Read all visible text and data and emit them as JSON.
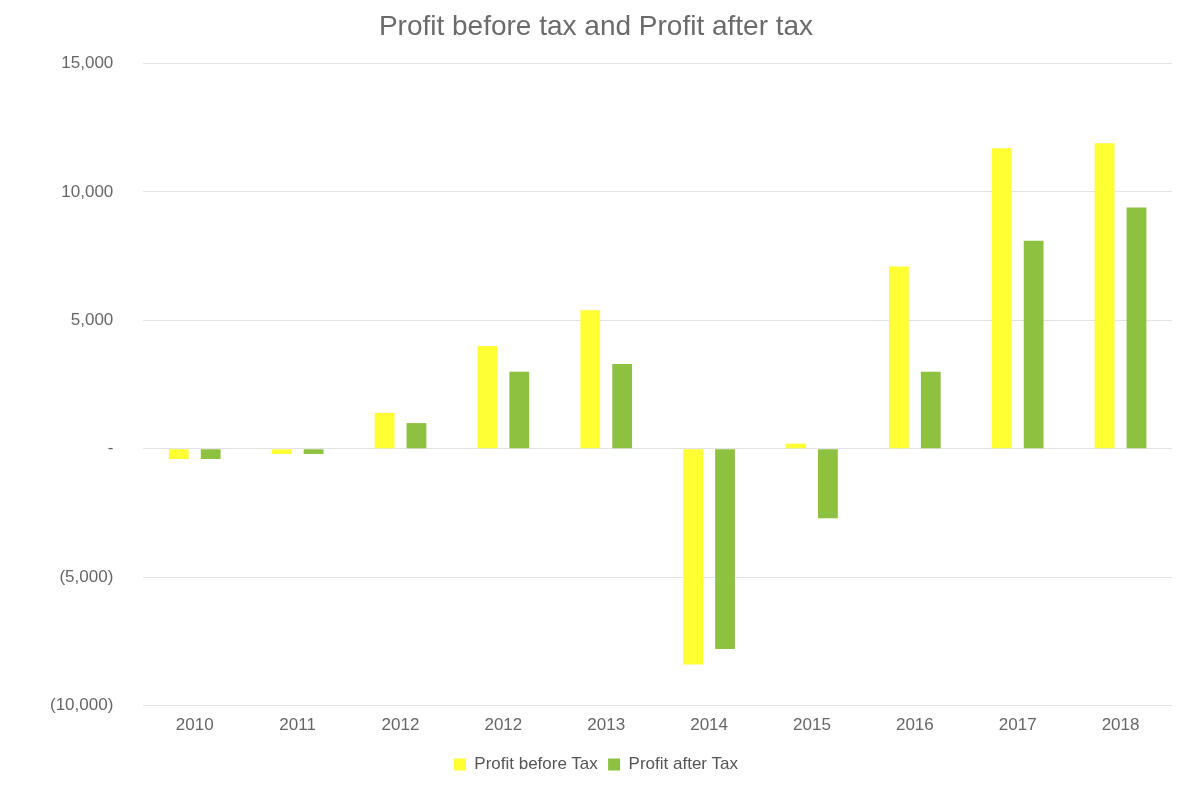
{
  "chart_data": {
    "type": "bar",
    "title": "Profit before tax and Profit after tax",
    "categories": [
      "2010",
      "2011",
      "2012",
      "2012",
      "2013",
      "2014",
      "2015",
      "2016",
      "2017",
      "2018"
    ],
    "series": [
      {
        "name": "Profit before Tax",
        "color": "#ffff33",
        "values": [
          -400,
          -200,
          1400,
          4000,
          5400,
          -8400,
          200,
          7100,
          11700,
          11900
        ]
      },
      {
        "name": "Profit after Tax",
        "color": "#8dc13f",
        "values": [
          -400,
          -200,
          1000,
          3000,
          3300,
          -7800,
          -2700,
          3000,
          8100,
          9400
        ]
      }
    ],
    "ylim": [
      -10000,
      15000
    ],
    "yticks": [
      {
        "value": -10000,
        "label": "(10,000)"
      },
      {
        "value": -5000,
        "label": "(5,000)"
      },
      {
        "value": 0,
        "label": "-"
      },
      {
        "value": 5000,
        "label": "5,000"
      },
      {
        "value": 10000,
        "label": "10,000"
      },
      {
        "value": 15000,
        "label": "15,000"
      }
    ],
    "grid": "y",
    "legend": "bottom"
  }
}
